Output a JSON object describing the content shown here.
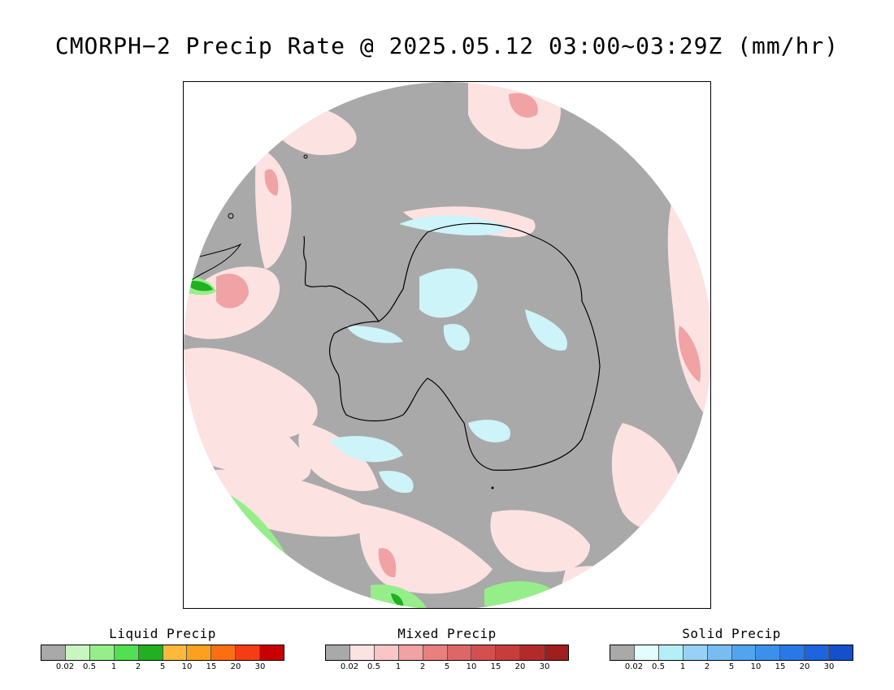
{
  "title": "CMORPH−2 Precip Rate @ 2025.05.12 03:00~03:29Z (mm/hr)",
  "map": {
    "projection": "south-polar-stereographic",
    "no_precip_color": "#a9a9a9",
    "coastline_color": "#000000"
  },
  "legends": [
    {
      "id": "liquid",
      "title": "Liquid Precip",
      "colors": [
        "#a9a9a9",
        "#c8f5c0",
        "#96ee8a",
        "#50e050",
        "#20b020",
        "#fcb93a",
        "#fca01e",
        "#fc6e14",
        "#f63c14",
        "#c80000"
      ],
      "ticks": [
        "0.02",
        "0.5",
        "1",
        "2",
        "5",
        "10",
        "15",
        "20",
        "30"
      ]
    },
    {
      "id": "mixed",
      "title": "Mixed Precip",
      "colors": [
        "#a9a9a9",
        "#fde2e2",
        "#f9c6c8",
        "#f0a2a4",
        "#e88080",
        "#de6666",
        "#d45050",
        "#c83c3c",
        "#b42a2a",
        "#a01e1e"
      ],
      "ticks": [
        "0.02",
        "0.5",
        "1",
        "2",
        "5",
        "10",
        "15",
        "20",
        "30"
      ]
    },
    {
      "id": "solid",
      "title": "Solid Precip",
      "colors": [
        "#a9a9a9",
        "#e2fdfd",
        "#b4eff8",
        "#96d2f5",
        "#78bcf2",
        "#50a4f0",
        "#3c90ec",
        "#2878e8",
        "#1e64e0",
        "#1450cc"
      ],
      "ticks": [
        "0.02",
        "0.5",
        "1",
        "2",
        "5",
        "10",
        "15",
        "20",
        "30"
      ]
    }
  ]
}
